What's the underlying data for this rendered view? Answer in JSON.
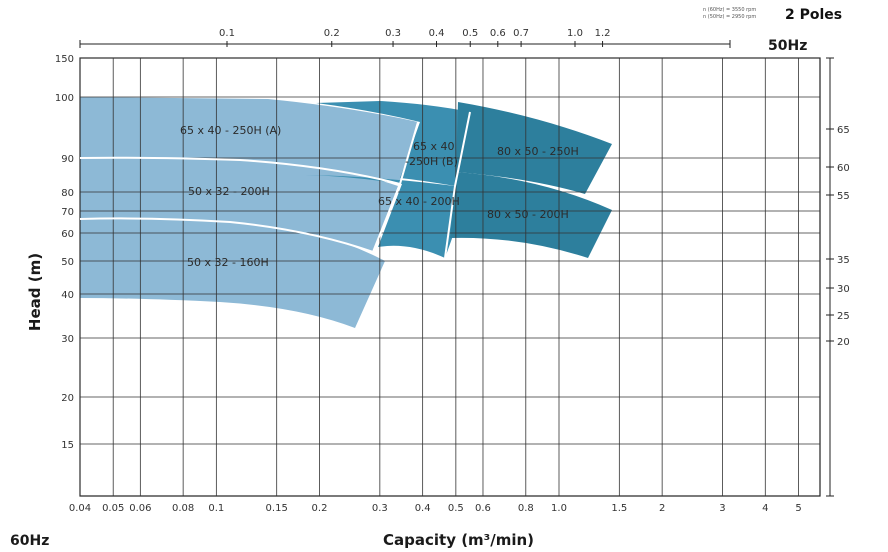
{
  "header": {
    "poles": "2 Poles",
    "rpm_note_60": "n (60Hz) = 3550 rpm",
    "rpm_note_50": "n (50Hz) = 2950 rpm"
  },
  "chart_data": {
    "type": "area",
    "xscale": "log",
    "xlabel": "Capacity (m³/min)",
    "ylabel": "Head (m)",
    "bottom_axis_tag": "60Hz",
    "top_axis_tag": "50Hz",
    "xlim": [
      0.04,
      5
    ],
    "ylim": [
      10,
      150
    ],
    "bottom_ticks": [
      "0.04",
      "0.05",
      "0.06",
      "0.08",
      "0.1",
      "0.15",
      "0.2",
      "0.3",
      "0.4",
      "0.5",
      "0.6",
      "0.8",
      "1.0",
      "1.5",
      "2",
      "3",
      "4",
      "5"
    ],
    "top_ticks": [
      "0.1",
      "0.2",
      "0.3",
      "0.4",
      "0.5",
      "0.6",
      "0.7",
      "1.0",
      "1.2"
    ],
    "left_ticks": [
      "150",
      "100",
      "90",
      "80",
      "70",
      "60",
      "50",
      "40",
      "30",
      "20",
      "15"
    ],
    "right_ticks": [
      "65",
      "60",
      "55",
      "35",
      "30",
      "25",
      "20"
    ],
    "series": [
      {
        "name": "65 x 40 - 250H (A)",
        "color": "#8db9d6"
      },
      {
        "name": "50 x 32 - 200H",
        "color": "#8db9d6"
      },
      {
        "name": "50 x 32 - 160H",
        "color": "#8db9d6"
      },
      {
        "name": "65 x 40 -250H (B)",
        "color": "#3b8fb1"
      },
      {
        "name": "65 x 40 - 200H",
        "color": "#3b8fb1"
      },
      {
        "name": "80 x 50 - 250H",
        "color": "#2d7f9d"
      },
      {
        "name": "80 x 50 - 200H",
        "color": "#2d7f9d"
      }
    ]
  }
}
